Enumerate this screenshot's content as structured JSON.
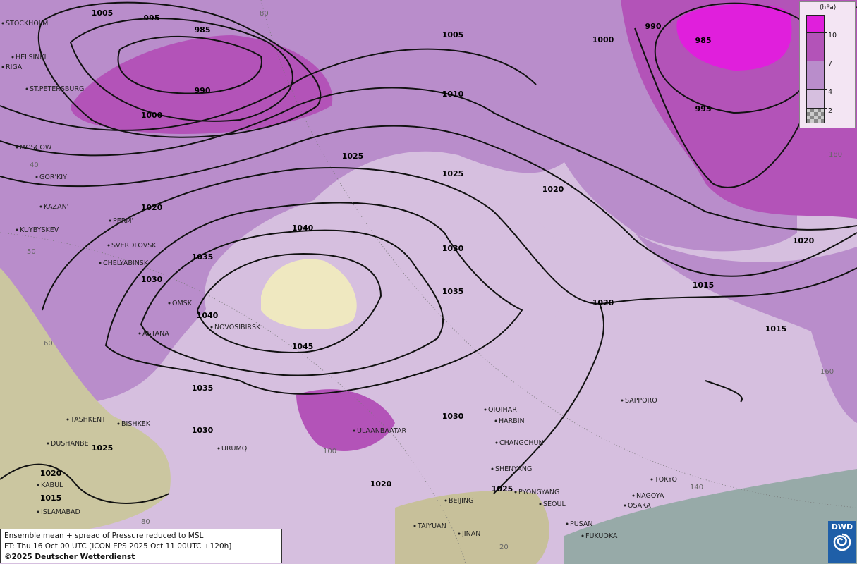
{
  "legend": {
    "unit": "(hPa)",
    "levels": [
      {
        "label": "10",
        "color": "#e01fdc"
      },
      {
        "label": "7",
        "color": "#b353b8"
      },
      {
        "label": "4",
        "color": "#b98dcb"
      },
      {
        "label": "2",
        "color": "#d6bfdf"
      },
      {
        "label": "",
        "color": "checker"
      }
    ]
  },
  "caption": {
    "line1": "Ensemble mean + spread of Pressure reduced to MSL",
    "line2": "FT: Thu 16 Oct 00 UTC [ICON EPS 2025 Oct 11 00UTC +120h]",
    "copyright": "©2025 Deutscher Wetterdienst"
  },
  "logo": {
    "text": "DWD"
  },
  "cities": [
    "STOCKHOLM",
    "HELSINKI",
    "RIGA",
    "ST.PETERSBURG",
    "MOSCOW",
    "GOR'KIY",
    "KAZAN'",
    "PERM'",
    "KUYBYSKEV",
    "SVERDLOVSK",
    "CHELYABINSK",
    "OMSK",
    "ASTANA",
    "NOVOSIBIRSK",
    "TASHKENT",
    "BISHKEK",
    "DUSHANBE",
    "KABUL",
    "ISLAMABAD",
    "URUMQI",
    "ULAANBAATAR",
    "QIQIHAR",
    "HARBIN",
    "CHANGCHUN",
    "SHENYANG",
    "PYONGYANG",
    "SEOUL",
    "BEIJING",
    "TAIYUAN",
    "JINAN",
    "PUSAN",
    "FUKUOKA",
    "OSAKA",
    "NAGOYA",
    "TOKYO",
    "SAPPORO"
  ],
  "isobar_labels": [
    "1005",
    "995",
    "985",
    "990",
    "1000",
    "1005",
    "1010",
    "1000",
    "990",
    "985",
    "995",
    "1025",
    "1025",
    "1020",
    "1020",
    "1040",
    "1035",
    "1030",
    "1030",
    "1035",
    "1040",
    "1045",
    "1035",
    "1030",
    "1030",
    "1025",
    "1020",
    "1015",
    "1015",
    "1020",
    "1025",
    "1020",
    "1015",
    "1020"
  ],
  "grid_labels": [
    "80",
    "40",
    "50",
    "60",
    "100",
    "80",
    "20",
    "180",
    "160",
    "140"
  ],
  "colors": {
    "base": "#d6bfdf",
    "spread4": "#b98dcb",
    "spread7": "#b353b8",
    "spread10": "#e01fdc",
    "sea": "#97aaa8",
    "terrain": "#efe8c0",
    "coast": "#e8900f"
  }
}
